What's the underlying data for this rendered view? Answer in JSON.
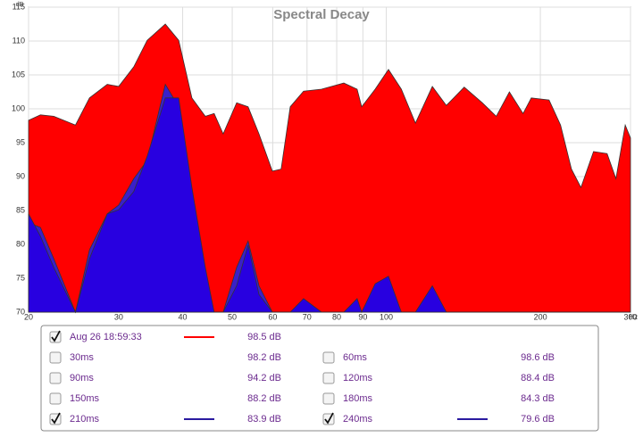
{
  "chart_data": {
    "type": "area",
    "title": "Spectral Decay",
    "ylabel": "dB",
    "xlabel": "Hz",
    "xscale": "log",
    "grid": true,
    "xlim": [
      20,
      300
    ],
    "ylim": [
      70,
      115
    ],
    "xticks": [
      20,
      30,
      40,
      50,
      60,
      70,
      80,
      90,
      100,
      200,
      300
    ],
    "yticks": [
      70,
      75,
      80,
      85,
      90,
      95,
      100,
      105,
      110,
      115
    ],
    "x": [
      20,
      21.1,
      22.4,
      24.7,
      26.3,
      28.5,
      30,
      32.1,
      34.1,
      37,
      39.3,
      41.7,
      44.3,
      46.1,
      48,
      51,
      53.7,
      56.4,
      59.9,
      62.3,
      64.9,
      68.9,
      74.7,
      82.6,
      87.7,
      89.5,
      95.1,
      101,
      107,
      114,
      123,
      131,
      142,
      154,
      164,
      174,
      185,
      192,
      208,
      219,
      230,
      240,
      254,
      270,
      281,
      293,
      300
    ],
    "series": [
      {
        "name": "Aug 26 18:59:33",
        "checked": true,
        "reading": "98.5 dB",
        "color": "#ff0000",
        "values": [
          98.3,
          99.1,
          98.9,
          97.6,
          101.6,
          103.6,
          103.3,
          106.2,
          110.1,
          112.5,
          110.1,
          101.6,
          98.9,
          99.3,
          96.3,
          100.9,
          100.3,
          96.3,
          90.8,
          91.1,
          100.3,
          102.6,
          102.9,
          103.8,
          102.9,
          100.3,
          102.9,
          105.8,
          102.9,
          97.9,
          103.3,
          100.5,
          103.2,
          100.9,
          98.9,
          102.5,
          99.3,
          101.6,
          101.3,
          97.6,
          91.1,
          88.4,
          93.7,
          93.4,
          89.7,
          97.6,
          95.7
        ]
      },
      {
        "name": "30ms",
        "checked": false,
        "reading": "98.2 dB"
      },
      {
        "name": "60ms",
        "checked": false,
        "reading": "98.6 dB"
      },
      {
        "name": "90ms",
        "checked": false,
        "reading": "94.2 dB"
      },
      {
        "name": "120ms",
        "checked": false,
        "reading": "88.4 dB"
      },
      {
        "name": "150ms",
        "checked": false,
        "reading": "88.2 dB"
      },
      {
        "name": "180ms",
        "checked": false,
        "reading": "84.3 dB"
      },
      {
        "name": "210ms",
        "checked": true,
        "reading": "83.9 dB",
        "color": "#3a20c8",
        "values": [
          83.2,
          82.5,
          77.9,
          70,
          79.2,
          84.5,
          85.8,
          89.7,
          92.4,
          103.6,
          100.3,
          85.8,
          72.6,
          70,
          70,
          76.6,
          80.5,
          73.9,
          70,
          70,
          70,
          70,
          70,
          70,
          70,
          70,
          73.9,
          73.9,
          70,
          70,
          70,
          70,
          70,
          70,
          70,
          70,
          70,
          70,
          70,
          70,
          70,
          70,
          70,
          70,
          70,
          70,
          70
        ]
      },
      {
        "name": "240ms",
        "checked": true,
        "reading": "79.6 dB",
        "color": "#2800e0",
        "values": [
          84.5,
          81.2,
          76.6,
          70,
          77.9,
          84.5,
          85.1,
          87.8,
          93,
          101.6,
          101.6,
          88.4,
          76.6,
          70,
          70,
          73.9,
          79.9,
          72.6,
          70,
          70,
          70,
          72,
          70,
          70,
          72,
          70,
          74.2,
          75.3,
          70,
          70,
          73.9,
          70,
          70,
          70,
          70,
          70,
          70,
          70,
          70,
          70,
          70,
          70,
          70,
          70,
          70,
          70,
          70
        ]
      }
    ]
  }
}
